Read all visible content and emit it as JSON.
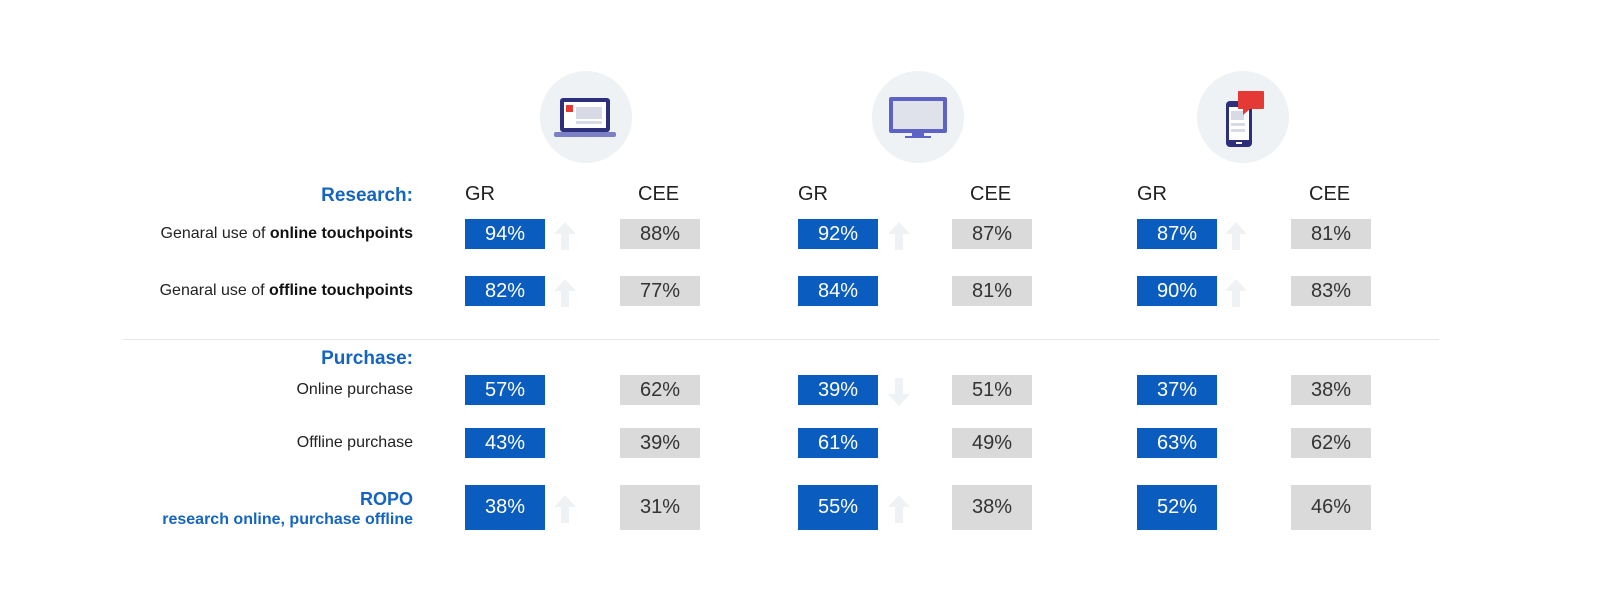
{
  "chart_data": {
    "type": "table",
    "sections": [
      {
        "title": "Research:",
        "rows": [
          0,
          1
        ]
      },
      {
        "title": "Purchase:",
        "rows": [
          2,
          3,
          4
        ]
      }
    ],
    "devices": [
      {
        "icon": "laptop-icon",
        "columns": [
          "GR",
          "CEE"
        ]
      },
      {
        "icon": "tv-icon",
        "columns": [
          "GR",
          "CEE"
        ]
      },
      {
        "icon": "smartphone-icon",
        "columns": [
          "GR",
          "CEE"
        ]
      }
    ],
    "rows": [
      {
        "label_prefix": "Genaral use of ",
        "label_bold": "online touchpoints",
        "values": [
          [
            "94%",
            "88%"
          ],
          [
            "92%",
            "87%"
          ],
          [
            "87%",
            "81%"
          ]
        ],
        "trend": [
          "up",
          "up",
          "up"
        ]
      },
      {
        "label_prefix": "Genaral use of ",
        "label_bold": "offline touchpoints",
        "values": [
          [
            "82%",
            "77%"
          ],
          [
            "84%",
            "81%"
          ],
          [
            "90%",
            "83%"
          ]
        ],
        "trend": [
          "up",
          "none",
          "up"
        ]
      },
      {
        "label_prefix": "Online purchase",
        "label_bold": "",
        "values": [
          [
            "57%",
            "62%"
          ],
          [
            "39%",
            "51%"
          ],
          [
            "37%",
            "38%"
          ]
        ],
        "trend": [
          "none",
          "down",
          "none"
        ]
      },
      {
        "label_prefix": "Offline purchase",
        "label_bold": "",
        "values": [
          [
            "43%",
            "39%"
          ],
          [
            "61%",
            "49%"
          ],
          [
            "63%",
            "62%"
          ]
        ],
        "trend": [
          "none",
          "none",
          "none"
        ]
      },
      {
        "label_title": "ROPO",
        "label_subtitle": "research online, purchase offline",
        "values": [
          [
            "38%",
            "31%"
          ],
          [
            "55%",
            "38%"
          ],
          [
            "52%",
            "46%"
          ]
        ],
        "trend": [
          "up",
          "up",
          "none"
        ]
      }
    ],
    "colors": {
      "gr_box": "#0b5cbf",
      "cee_box": "#dadada",
      "accent_text": "#1565c0",
      "arrow": "#eef2f5",
      "icon_bg": "#eef2f5"
    }
  }
}
